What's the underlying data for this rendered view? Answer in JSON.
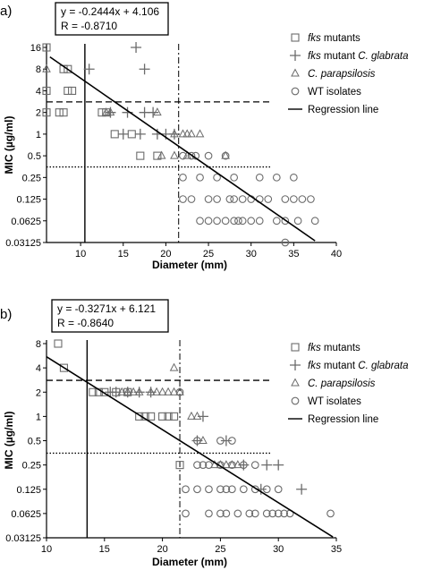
{
  "chart_data": [
    {
      "type": "scatter",
      "panel_label": "a)",
      "equation": "y = -0.2444x + 4.106",
      "r_value": "R = -0.8710",
      "xlabel": "Diameter (mm)",
      "ylabel": "MIC (µg/ml)",
      "x_ticks": [
        "10",
        "15",
        "20",
        "25",
        "30",
        "35",
        "40"
      ],
      "y_ticks": [
        "16",
        "8",
        "4",
        "2",
        "1",
        "0.5",
        "0.25",
        "0.125",
        "0.0625",
        "0.03125"
      ],
      "xlim": [
        6,
        40
      ],
      "ylim": [
        0.03125,
        16
      ],
      "y_scale": "log2",
      "legend": [
        {
          "label_italic": "fks",
          "label_rest": " mutants",
          "marker": "square"
        },
        {
          "label_italic": "fks",
          "label_rest": " mutant ",
          "label_italic2": "C. glabrata",
          "marker": "plus"
        },
        {
          "label_italic": "C. parapsilosis",
          "label_rest": "",
          "marker": "triangle"
        },
        {
          "label_italic": "",
          "label_rest": "WT isolates",
          "marker": "circle"
        },
        {
          "label_italic": "",
          "label_rest": "Regression line",
          "marker": "line"
        }
      ],
      "reference_lines": {
        "vertical_solid": 10.5,
        "vertical_dashdot": 21.5,
        "horizontal_dashed": 2.8,
        "horizontal_dotted": 0.35
      },
      "regression": {
        "x": [
          6.4,
          37.5
        ],
        "y": [
          11.8,
          0.033
        ]
      },
      "series": [
        {
          "name": "fks mutants",
          "marker": "square",
          "points": [
            [
              6,
              16
            ],
            [
              6,
              4
            ],
            [
              6,
              2
            ],
            [
              8,
              8
            ],
            [
              8.5,
              8
            ],
            [
              7.5,
              2
            ],
            [
              8,
              2
            ],
            [
              9,
              4
            ],
            [
              8.5,
              4
            ],
            [
              12.5,
              2
            ],
            [
              13,
              2
            ],
            [
              14,
              1
            ],
            [
              16,
              1
            ],
            [
              17,
              0.5
            ],
            [
              19,
              0.5
            ]
          ]
        },
        {
          "name": "fks mutant C. glabrata",
          "marker": "plus",
          "points": [
            [
              16.5,
              16
            ],
            [
              11,
              8
            ],
            [
              17.5,
              8
            ],
            [
              13.5,
              2
            ],
            [
              15.5,
              2
            ],
            [
              17.5,
              2
            ],
            [
              18.5,
              2
            ],
            [
              15,
              1
            ],
            [
              17,
              1
            ],
            [
              19,
              1
            ],
            [
              20,
              1
            ],
            [
              21,
              1
            ]
          ]
        },
        {
          "name": "C. parapsilosis",
          "marker": "triangle",
          "points": [
            [
              6,
              8
            ],
            [
              13,
              2
            ],
            [
              13.5,
              2
            ],
            [
              19,
              2
            ],
            [
              21,
              1
            ],
            [
              22,
              1
            ],
            [
              22.5,
              1
            ],
            [
              23,
              1
            ],
            [
              24,
              1
            ],
            [
              19.5,
              0.5
            ],
            [
              21,
              0.5
            ],
            [
              22.5,
              0.5
            ],
            [
              27,
              0.5
            ]
          ]
        },
        {
          "name": "WT isolates",
          "marker": "circle",
          "points": [
            [
              22,
              0.5
            ],
            [
              23,
              0.5
            ],
            [
              23.5,
              0.5
            ],
            [
              25,
              0.5
            ],
            [
              27,
              0.5
            ],
            [
              22,
              0.25
            ],
            [
              24,
              0.25
            ],
            [
              26,
              0.25
            ],
            [
              28,
              0.25
            ],
            [
              31,
              0.25
            ],
            [
              33,
              0.25
            ],
            [
              35,
              0.25
            ],
            [
              22,
              0.125
            ],
            [
              23,
              0.125
            ],
            [
              25,
              0.125
            ],
            [
              26,
              0.125
            ],
            [
              27.5,
              0.125
            ],
            [
              28,
              0.125
            ],
            [
              29,
              0.125
            ],
            [
              30,
              0.125
            ],
            [
              31,
              0.125
            ],
            [
              32,
              0.125
            ],
            [
              34,
              0.125
            ],
            [
              35,
              0.125
            ],
            [
              36,
              0.125
            ],
            [
              37,
              0.125
            ],
            [
              24,
              0.0625
            ],
            [
              25,
              0.0625
            ],
            [
              26,
              0.0625
            ],
            [
              27,
              0.0625
            ],
            [
              28,
              0.0625
            ],
            [
              28.5,
              0.0625
            ],
            [
              29,
              0.0625
            ],
            [
              30,
              0.0625
            ],
            [
              31,
              0.0625
            ],
            [
              33,
              0.0625
            ],
            [
              34,
              0.0625
            ],
            [
              35.5,
              0.0625
            ],
            [
              37.5,
              0.0625
            ],
            [
              34,
              0.03125
            ]
          ]
        }
      ]
    },
    {
      "type": "scatter",
      "panel_label": "b)",
      "equation": "y = -0.3271x + 6.121",
      "r_value": "R = -0.8640",
      "xlabel": "Diameter (mm)",
      "ylabel": "MIC (µg/ml)",
      "x_ticks": [
        "10",
        "15",
        "20",
        "25",
        "30",
        "35"
      ],
      "y_ticks": [
        "8",
        "4",
        "2",
        "1",
        "0.5",
        "0.25",
        "0.125",
        "0.0625",
        "0.03125"
      ],
      "xlim": [
        10,
        35
      ],
      "ylim": [
        0.03125,
        8
      ],
      "y_scale": "log2",
      "legend": [
        {
          "label_italic": "fks",
          "label_rest": " mutants",
          "marker": "square"
        },
        {
          "label_italic": "fks",
          "label_rest": " mutant ",
          "label_italic2": "C. glabrata",
          "marker": "plus"
        },
        {
          "label_italic": "C. parapsilosis",
          "label_rest": "",
          "marker": "triangle"
        },
        {
          "label_italic": "",
          "label_rest": "WT isolates",
          "marker": "circle"
        },
        {
          "label_italic": "",
          "label_rest": "Regression line",
          "marker": "line"
        }
      ],
      "reference_lines": {
        "vertical_solid": 13.5,
        "vertical_dashdot": 21.5,
        "horizontal_dashed": 2.8,
        "horizontal_dotted": 0.35
      },
      "regression": {
        "x": [
          10,
          34.7
        ],
        "y": [
          5.5,
          0.032
        ]
      },
      "series": [
        {
          "name": "fks mutants",
          "marker": "square",
          "points": [
            [
              11,
              8
            ],
            [
              11.5,
              4
            ],
            [
              14,
              2
            ],
            [
              14.5,
              2
            ],
            [
              15,
              2
            ],
            [
              16,
              2
            ],
            [
              17,
              2
            ],
            [
              18,
              1
            ],
            [
              18.5,
              1
            ],
            [
              19,
              1
            ],
            [
              20,
              1
            ],
            [
              20.5,
              1
            ],
            [
              21,
              1
            ],
            [
              21.5,
              0.25
            ]
          ]
        },
        {
          "name": "fks mutant C. glabrata",
          "marker": "plus",
          "points": [
            [
              15.5,
              2
            ],
            [
              16,
              2
            ],
            [
              17,
              2
            ],
            [
              18,
              2
            ],
            [
              19,
              2
            ],
            [
              23.5,
              1
            ],
            [
              23,
              0.5
            ],
            [
              25.5,
              0.5
            ],
            [
              27,
              0.25
            ],
            [
              29,
              0.25
            ],
            [
              30,
              0.25
            ],
            [
              28.5,
              0.125
            ],
            [
              32,
              0.125
            ]
          ]
        },
        {
          "name": "C. parapsilosis",
          "marker": "triangle",
          "points": [
            [
              16.5,
              2
            ],
            [
              17,
              2
            ],
            [
              17.5,
              2
            ],
            [
              18,
              2
            ],
            [
              19,
              2
            ],
            [
              19.5,
              2
            ],
            [
              20,
              2
            ],
            [
              20.5,
              2
            ],
            [
              21,
              2
            ],
            [
              21.5,
              2
            ],
            [
              21,
              4
            ],
            [
              22.5,
              1
            ],
            [
              23,
              1
            ],
            [
              23.5,
              0.5
            ],
            [
              24.5,
              0.25
            ],
            [
              25,
              0.25
            ],
            [
              25.5,
              0.25
            ],
            [
              26,
              0.25
            ],
            [
              26.5,
              0.25
            ]
          ]
        },
        {
          "name": "WT isolates",
          "marker": "circle",
          "points": [
            [
              21.5,
              2
            ],
            [
              23,
              0.5
            ],
            [
              25,
              0.5
            ],
            [
              26,
              0.5
            ],
            [
              23,
              0.25
            ],
            [
              23.5,
              0.25
            ],
            [
              24,
              0.25
            ],
            [
              25,
              0.25
            ],
            [
              26,
              0.25
            ],
            [
              27,
              0.25
            ],
            [
              28,
              0.25
            ],
            [
              22,
              0.125
            ],
            [
              23,
              0.125
            ],
            [
              24,
              0.125
            ],
            [
              25,
              0.125
            ],
            [
              25.5,
              0.125
            ],
            [
              26,
              0.125
            ],
            [
              27,
              0.125
            ],
            [
              28,
              0.125
            ],
            [
              29,
              0.125
            ],
            [
              30,
              0.125
            ],
            [
              22,
              0.0625
            ],
            [
              24,
              0.0625
            ],
            [
              25,
              0.0625
            ],
            [
              25.5,
              0.0625
            ],
            [
              26.5,
              0.0625
            ],
            [
              27.5,
              0.0625
            ],
            [
              28,
              0.0625
            ],
            [
              29,
              0.0625
            ],
            [
              29.5,
              0.0625
            ],
            [
              30,
              0.0625
            ],
            [
              30.5,
              0.0625
            ],
            [
              31,
              0.0625
            ],
            [
              34.5,
              0.0625
            ]
          ]
        }
      ]
    }
  ]
}
